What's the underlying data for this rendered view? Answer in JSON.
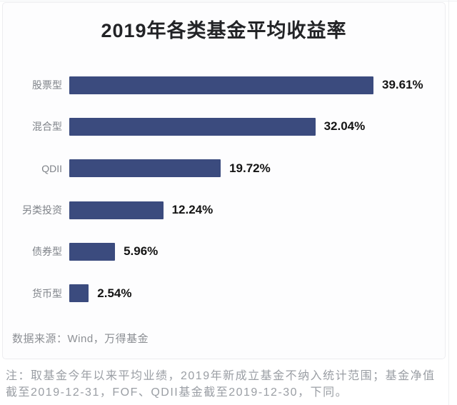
{
  "page": {
    "source": "数据来源：Wind，万得基金",
    "note_lines": [
      "注：取基金今年以来平均业绩，2019年新成立基金不纳入统计范围；基金净值",
      "截至2019-12-31，FOF、QDII基金截至2019-12-30，下同。"
    ]
  },
  "chart_data": {
    "type": "bar",
    "orientation": "horizontal",
    "title": "2019年各类基金平均收益率",
    "categories": [
      "股票型",
      "混合型",
      "QDII",
      "另类投资",
      "债券型",
      "货币型"
    ],
    "values": [
      39.61,
      32.04,
      19.72,
      12.24,
      5.96,
      2.54
    ],
    "value_labels": [
      "39.61%",
      "32.04%",
      "19.72%",
      "12.24%",
      "5.96%",
      "2.54%"
    ],
    "unit": "%",
    "xlim": [
      0,
      39.61
    ],
    "bar_color": "#3B4B7E",
    "value_label_color": "#141414",
    "category_label_color": "#7F8389",
    "grid": false,
    "legend": "none"
  }
}
